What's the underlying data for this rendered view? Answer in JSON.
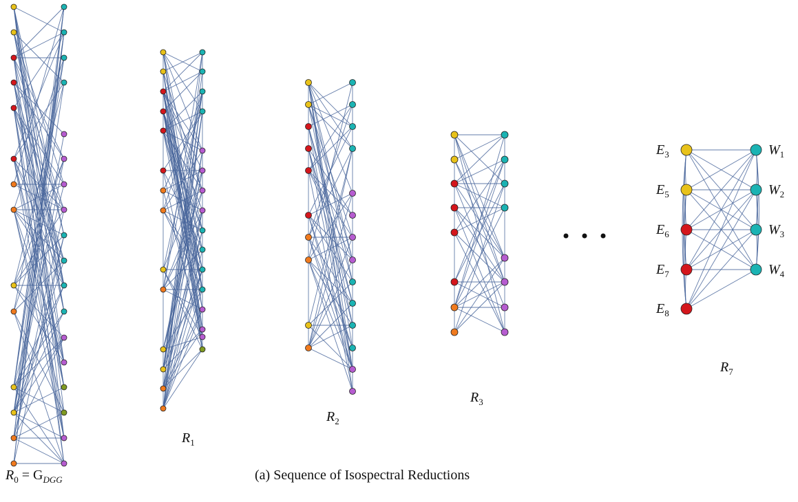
{
  "caption": "(a) Sequence of Isospectral Reductions",
  "ellipsis": "• • •",
  "colors": {
    "edge": "#46649a",
    "yellow": "#e8c21a",
    "red": "#d4161c",
    "orange": "#f07a1e",
    "cyan": "#1bb3b3",
    "purple": "#b65cd0",
    "olive": "#7f9a22"
  },
  "graphs": [
    {
      "id": "R0",
      "label": {
        "main": "R",
        "sub": "0",
        "suffix": " = G",
        "suffix_sub": "DGG"
      },
      "left_colors": [
        "yellow",
        "yellow",
        "red",
        "red",
        "red",
        "red",
        "orange",
        "orange",
        "yellow",
        "orange",
        "yellow",
        "yellow",
        "orange",
        "orange"
      ],
      "right_colors": [
        "cyan",
        "cyan",
        "cyan",
        "cyan",
        "purple",
        "purple",
        "purple",
        "purple",
        "cyan",
        "cyan",
        "cyan",
        "cyan",
        "purple",
        "purple",
        "olive",
        "olive",
        "purple",
        "purple"
      ]
    },
    {
      "id": "R1",
      "label": {
        "main": "R",
        "sub": "1"
      },
      "left_colors": [
        "yellow",
        "yellow",
        "red",
        "red",
        "red",
        "red",
        "orange",
        "orange",
        "yellow",
        "orange",
        "yellow",
        "yellow",
        "orange",
        "orange"
      ],
      "right_colors": [
        "cyan",
        "cyan",
        "cyan",
        "cyan",
        "purple",
        "purple",
        "purple",
        "purple",
        "cyan",
        "cyan",
        "cyan",
        "cyan",
        "purple",
        "purple",
        "purple",
        "olive"
      ]
    },
    {
      "id": "R2",
      "label": {
        "main": "R",
        "sub": "2"
      },
      "left_colors": [
        "yellow",
        "yellow",
        "red",
        "red",
        "red",
        "red",
        "orange",
        "orange",
        "yellow",
        "orange"
      ],
      "right_colors": [
        "cyan",
        "cyan",
        "cyan",
        "cyan",
        "purple",
        "purple",
        "purple",
        "purple",
        "cyan",
        "cyan",
        "cyan",
        "cyan",
        "purple",
        "purple"
      ]
    },
    {
      "id": "R3",
      "label": {
        "main": "R",
        "sub": "3"
      },
      "left_colors": [
        "yellow",
        "yellow",
        "red",
        "red",
        "red",
        "red",
        "orange",
        "orange"
      ],
      "right_colors": [
        "cyan",
        "cyan",
        "cyan",
        "cyan",
        "purple",
        "purple",
        "purple",
        "purple"
      ]
    },
    {
      "id": "R7",
      "label": {
        "main": "R",
        "sub": "7"
      },
      "left_colors": [
        "yellow",
        "yellow",
        "red",
        "red",
        "red"
      ],
      "right_colors": [
        "cyan",
        "cyan",
        "cyan",
        "cyan"
      ],
      "left_labels": [
        {
          "main": "E",
          "sub": "3"
        },
        {
          "main": "E",
          "sub": "5"
        },
        {
          "main": "E",
          "sub": "6"
        },
        {
          "main": "E",
          "sub": "7"
        },
        {
          "main": "E",
          "sub": "8"
        }
      ],
      "right_labels": [
        {
          "main": "W",
          "sub": "1"
        },
        {
          "main": "W",
          "sub": "2"
        },
        {
          "main": "W",
          "sub": "3"
        },
        {
          "main": "W",
          "sub": "4"
        }
      ]
    }
  ]
}
